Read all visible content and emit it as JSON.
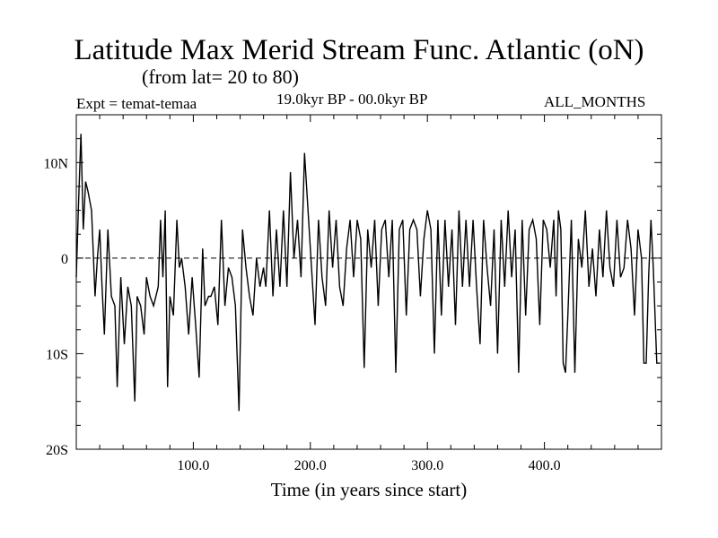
{
  "header": {
    "title": "Latitude Max Merid Stream Func. Atlantic (oN)",
    "subtitle": "(from lat= 20 to 80)",
    "experiment": "Expt = temat-temaa",
    "period": "19.0kyr BP - 00.0kyr BP",
    "months": "ALL_MONTHS"
  },
  "chart_data": {
    "type": "line",
    "title": "Latitude Max Merid Stream Func. Atlantic (oN)",
    "xlabel": "Time (in years since start)",
    "ylabel": "",
    "xlim": [
      0,
      500
    ],
    "ylim": [
      -20,
      15
    ],
    "x_ticks": [
      {
        "value": 100,
        "label": "100.0"
      },
      {
        "value": 200,
        "label": "200.0"
      },
      {
        "value": 300,
        "label": "300.0"
      },
      {
        "value": 400,
        "label": "400.0"
      }
    ],
    "y_ticks": [
      {
        "value": 10,
        "label": "10N"
      },
      {
        "value": 0,
        "label": "0"
      },
      {
        "value": -10,
        "label": "10S"
      },
      {
        "value": -20,
        "label": "20S"
      }
    ],
    "reference_line": 0,
    "series": [
      {
        "name": "Latitude Max Merid Stream Func.",
        "x": [
          0,
          2,
          4,
          6,
          8,
          10,
          13,
          16,
          18,
          20,
          22,
          24,
          27,
          30,
          33,
          35,
          38,
          41,
          44,
          47,
          50,
          52,
          55,
          58,
          60,
          63,
          66,
          70,
          72,
          74,
          76,
          78,
          80,
          83,
          86,
          88,
          90,
          93,
          96,
          99,
          102,
          105,
          108,
          110,
          113,
          115,
          118,
          121,
          124,
          127,
          130,
          133,
          136,
          139,
          142,
          145,
          148,
          151,
          154,
          157,
          160,
          162,
          165,
          168,
          171,
          174,
          177,
          180,
          183,
          186,
          189,
          192,
          195,
          198,
          201,
          204,
          207,
          210,
          213,
          216,
          219,
          222,
          225,
          228,
          231,
          234,
          237,
          240,
          243,
          246,
          249,
          252,
          255,
          258,
          261,
          264,
          267,
          270,
          273,
          276,
          279,
          282,
          285,
          288,
          291,
          294,
          297,
          300,
          303,
          306,
          309,
          312,
          315,
          318,
          321,
          324,
          327,
          330,
          333,
          336,
          339,
          342,
          345,
          348,
          351,
          354,
          357,
          360,
          363,
          366,
          369,
          372,
          375,
          378,
          381,
          384,
          387,
          390,
          393,
          396,
          399,
          402,
          405,
          408,
          410,
          412,
          414,
          416,
          418,
          420,
          423,
          426,
          429,
          432,
          435,
          438,
          441,
          444,
          447,
          450,
          453,
          456,
          459,
          462,
          465,
          468,
          471,
          474,
          477,
          480,
          483,
          485,
          487,
          489,
          491,
          493,
          496,
          499
        ],
        "y": [
          -2,
          6,
          13,
          3,
          8,
          7,
          5,
          -4,
          0,
          3,
          -3,
          -8,
          3,
          -4,
          -5,
          -13.5,
          -2,
          -9,
          -3,
          -5,
          -15,
          -4,
          -5,
          -8,
          -2,
          -4,
          -5,
          -3,
          4,
          -2,
          5,
          -13.5,
          -4,
          -6,
          4,
          -1,
          0,
          -3,
          -8,
          -2,
          -7,
          -12.5,
          1,
          -5,
          -4,
          -4,
          -3,
          -7,
          4,
          -5,
          -1,
          -2,
          -5,
          -16,
          3,
          -1,
          -4,
          -6,
          0,
          -3,
          -1,
          -3,
          5,
          -4,
          3,
          -3,
          5,
          -3,
          9,
          0,
          4,
          -2,
          11,
          5,
          -1,
          -7,
          4,
          -2,
          -5,
          5,
          -1,
          4,
          -3,
          -5,
          1,
          4,
          -2,
          4,
          2,
          -11.5,
          3,
          -1,
          4,
          -5,
          3,
          4,
          -2,
          4,
          -12,
          3,
          4,
          -6,
          3,
          4,
          3,
          -4,
          2,
          5,
          3,
          -10,
          4,
          -6,
          4,
          -3,
          3,
          -7,
          5,
          -3,
          4,
          -3,
          4,
          -3,
          -9,
          4,
          -1,
          -5,
          3,
          -10,
          4,
          -3,
          5,
          -2,
          3,
          -12,
          4,
          -6,
          3,
          4,
          2,
          -7,
          4,
          3,
          -1,
          4,
          -4,
          5,
          3,
          -11,
          -12,
          -6,
          4,
          -12,
          2,
          -1,
          5,
          -3,
          1,
          -4,
          3,
          -2,
          5,
          -1,
          -3,
          4,
          -2,
          -1,
          4,
          1,
          -6,
          3,
          0,
          -11,
          -11,
          -2,
          4,
          -1,
          -11,
          -11
        ]
      }
    ]
  }
}
